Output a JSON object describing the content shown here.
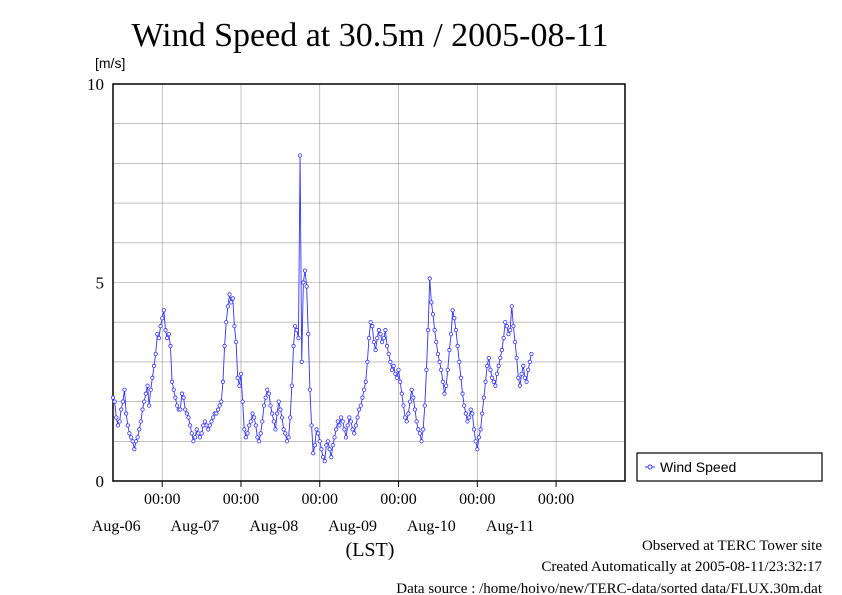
{
  "chart_data": {
    "type": "line",
    "title": "Wind Speed at 30.5m / 2005-08-11",
    "ylabel": "[m/s]",
    "xlabel": "(LST)",
    "ylim": [
      0,
      10
    ],
    "yticks": [
      0,
      5,
      10
    ],
    "xlim": [
      "2005-08-05T09:00",
      "2005-08-11T21:00"
    ],
    "xticks": [
      {
        "time": "2005-08-06T00:00",
        "label": "00:00",
        "date_label": "Aug-06"
      },
      {
        "time": "2005-08-07T00:00",
        "label": "00:00",
        "date_label": "Aug-07"
      },
      {
        "time": "2005-08-08T00:00",
        "label": "00:00",
        "date_label": "Aug-08"
      },
      {
        "time": "2005-08-09T00:00",
        "label": "00:00",
        "date_label": "Aug-09"
      },
      {
        "time": "2005-08-10T00:00",
        "label": "00:00",
        "date_label": "Aug-10"
      },
      {
        "time": "2005-08-11T00:00",
        "label": "00:00",
        "date_label": "Aug-11"
      }
    ],
    "grid": true,
    "legend_position": "right",
    "series": [
      {
        "name": "Wind Speed",
        "color": "#3333ff",
        "start": "2005-08-05T09:00",
        "interval_minutes": 30,
        "values": [
          2.1,
          2.0,
          1.6,
          1.4,
          1.5,
          1.8,
          2.0,
          2.3,
          1.7,
          1.4,
          1.2,
          1.1,
          1.0,
          0.8,
          1.0,
          1.1,
          1.3,
          1.5,
          1.8,
          2.0,
          2.2,
          2.4,
          1.9,
          2.3,
          2.6,
          2.9,
          3.2,
          3.7,
          3.6,
          3.9,
          4.1,
          4.3,
          3.8,
          3.6,
          3.7,
          3.4,
          2.5,
          2.3,
          2.1,
          1.9,
          1.8,
          1.8,
          2.2,
          2.1,
          1.8,
          1.7,
          1.6,
          1.4,
          1.2,
          1.0,
          1.1,
          1.3,
          1.2,
          1.1,
          1.2,
          1.4,
          1.5,
          1.4,
          1.3,
          1.4,
          1.5,
          1.6,
          1.7,
          1.7,
          1.8,
          1.9,
          2.0,
          2.5,
          3.4,
          4.0,
          4.4,
          4.7,
          4.5,
          4.6,
          3.9,
          3.5,
          2.6,
          2.4,
          2.7,
          2.0,
          1.3,
          1.1,
          1.2,
          1.4,
          1.5,
          1.7,
          1.6,
          1.4,
          1.1,
          1.0,
          1.2,
          1.5,
          1.9,
          2.1,
          2.3,
          2.2,
          1.9,
          1.7,
          1.5,
          1.3,
          1.7,
          2.0,
          1.8,
          1.6,
          1.3,
          1.2,
          1.0,
          1.1,
          1.6,
          2.4,
          3.4,
          3.9,
          3.8,
          3.6,
          8.2,
          3.0,
          5.0,
          5.3,
          4.9,
          3.7,
          2.3,
          1.4,
          0.7,
          0.9,
          1.3,
          1.2,
          1.0,
          0.8,
          0.6,
          0.5,
          0.9,
          1.0,
          0.8,
          0.6,
          0.9,
          1.1,
          1.3,
          1.5,
          1.4,
          1.6,
          1.5,
          1.3,
          1.1,
          1.4,
          1.6,
          1.5,
          1.3,
          1.2,
          1.4,
          1.6,
          1.8,
          1.9,
          2.1,
          2.3,
          2.5,
          3.0,
          3.6,
          4.0,
          3.9,
          3.5,
          3.3,
          3.6,
          3.8,
          3.7,
          3.5,
          3.6,
          3.8,
          3.4,
          3.2,
          3.0,
          2.8,
          2.9,
          2.7,
          2.6,
          2.8,
          2.5,
          2.2,
          1.9,
          1.6,
          1.5,
          1.7,
          2.0,
          2.3,
          2.1,
          1.8,
          1.5,
          1.3,
          1.2,
          1.0,
          1.3,
          1.9,
          2.8,
          3.8,
          5.1,
          4.5,
          4.2,
          3.8,
          3.5,
          3.2,
          3.0,
          2.8,
          2.5,
          2.2,
          2.4,
          2.8,
          3.3,
          3.7,
          4.3,
          4.1,
          3.8,
          3.4,
          3.0,
          2.6,
          2.2,
          1.9,
          1.7,
          1.5,
          1.6,
          1.8,
          1.7,
          1.3,
          1.0,
          0.8,
          1.1,
          1.3,
          1.7,
          2.1,
          2.5,
          2.9,
          3.1,
          2.8,
          2.6,
          2.5,
          2.4,
          2.7,
          2.9,
          3.1,
          3.3,
          3.6,
          4.0,
          3.9,
          3.7,
          3.8,
          4.4,
          3.9,
          3.5,
          3.1,
          2.6,
          2.4,
          2.7,
          2.9,
          2.6,
          2.5,
          2.8,
          3.0,
          3.2
        ]
      }
    ],
    "annotations": [
      "Observed at TERC Tower site",
      "Created Automatically at 2005-08-11/23:32:17",
      "Data source : /home/hoivo/new/TERC-data/sorted  data/FLUX.30m.dat"
    ]
  }
}
